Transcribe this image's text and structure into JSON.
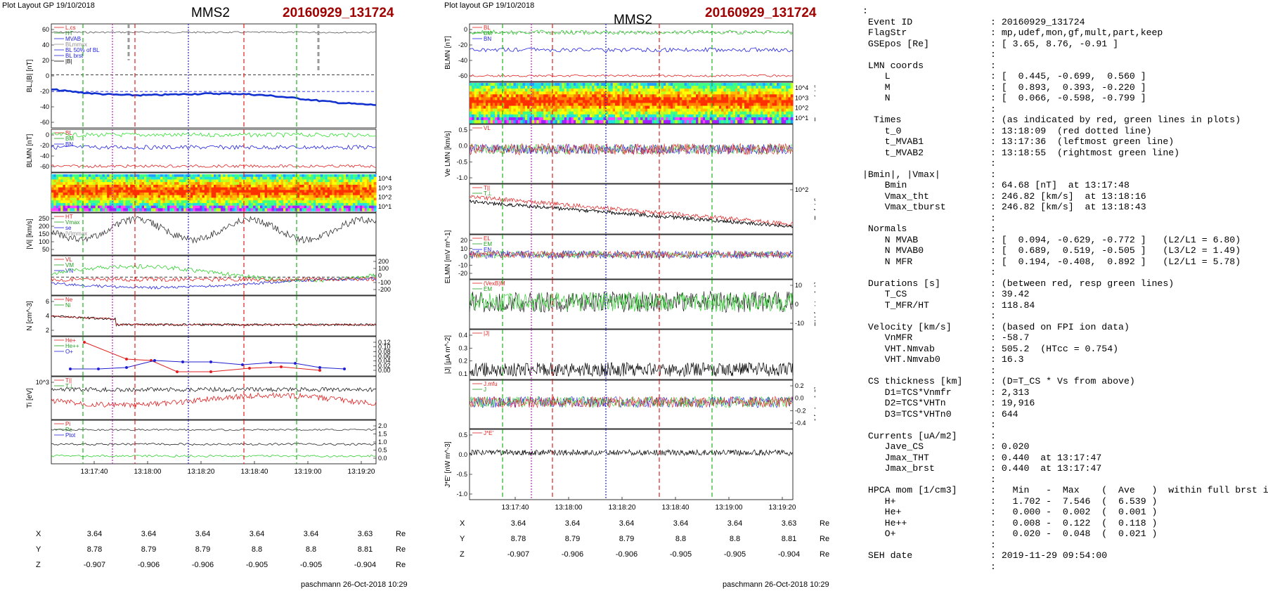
{
  "left": {
    "header": "Plot Layout GP 19/10/2018",
    "title": "MMS2",
    "event": "20160929_131724",
    "footer": "paschmann 26-Oct-2018 10:29",
    "time_ticks": [
      "13:17:40",
      "13:18:00",
      "13:18:20",
      "13:18:40",
      "13:19:00",
      "13:19:20"
    ],
    "coords": [
      {
        "label": "X",
        "values": [
          "3.64",
          "3.64",
          "3.64",
          "3.64",
          "3.64",
          "3.63"
        ],
        "unit": "Re"
      },
      {
        "label": "Y",
        "values": [
          "8.78",
          "8.79",
          "8.79",
          "8.8",
          "8.8",
          "8.81"
        ],
        "unit": "Re"
      },
      {
        "label": "Z",
        "values": [
          "-0.907",
          "-0.906",
          "-0.906",
          "-0.905",
          "-0.905",
          "-0.904"
        ],
        "unit": "Re"
      }
    ],
    "panels": [
      {
        "ylabel": "BL,|B| [nT]",
        "ticks": [
          "60",
          "40",
          "20",
          "0",
          "-20",
          "-40",
          "-60"
        ],
        "legend": [
          "L.cs",
          "HT",
          "MVAB",
          "BLmmsx",
          "BL 50% of BL",
          "BL brst",
          "|B|"
        ]
      },
      {
        "ylabel": "BLMN [nT]",
        "ticks": [
          "0",
          "-20",
          "-40",
          "-60"
        ],
        "legend": [
          "BL",
          "BM",
          "BN"
        ]
      },
      {
        "ylabel": "",
        "right_label": "Energy (eV)",
        "ticks_right": [
          "10^4",
          "10^3",
          "10^2",
          "10^1"
        ]
      },
      {
        "ylabel": "|Vi| [km/s]",
        "ticks": [
          "250",
          "200",
          "150",
          "100",
          "50"
        ],
        "legend": [
          "HT",
          "Vmax",
          "se",
          "|V|mmax"
        ]
      },
      {
        "ylabel": "",
        "right_label": "Vi LMN [km/s]",
        "ticks_right": [
          "200",
          "100",
          "0",
          "-100",
          "-200"
        ],
        "legend": [
          "VL",
          "VM",
          "VN"
        ]
      },
      {
        "ylabel": "N [cm^-3]",
        "ticks": [
          "6",
          "4",
          "2"
        ],
        "legend": [
          "Ne",
          "Ni"
        ]
      },
      {
        "ylabel": "",
        "right_label": "Ni [cm^-3]",
        "ticks_right": [
          "0.12",
          "0.10",
          "0.08",
          "0.06",
          "0.04",
          "0.02",
          "0.00"
        ],
        "legend": [
          "He+",
          "He++",
          "O+"
        ]
      },
      {
        "ylabel": "Ti [eV]",
        "ticks": [
          "10^3"
        ],
        "legend": [
          "T||",
          "T⊥"
        ]
      },
      {
        "ylabel": "",
        "right_label": "P [nPa]",
        "ticks_right": [
          "2.0",
          "1.5",
          "1.0",
          "0.5",
          "0.0"
        ],
        "legend": [
          "Pi",
          "Pe",
          "Ptot"
        ]
      }
    ]
  },
  "middle": {
    "header": "Plot layout GP 19/10/2018",
    "title": "MMS2",
    "event": "20160929_131724",
    "footer": "paschmann 26-Oct-2018 10:29",
    "time_ticks": [
      "13:17:40",
      "13:18:00",
      "13:18:20",
      "13:18:40",
      "13:19:00",
      "13:19:20"
    ],
    "coords": [
      {
        "label": "X",
        "values": [
          "3.64",
          "3.64",
          "3.64",
          "3.64",
          "3.64",
          "3.63"
        ],
        "unit": "Re"
      },
      {
        "label": "Y",
        "values": [
          "8.78",
          "8.79",
          "8.79",
          "8.8",
          "8.8",
          "8.81"
        ],
        "unit": "Re"
      },
      {
        "label": "Z",
        "values": [
          "-0.907",
          "-0.906",
          "-0.906",
          "-0.905",
          "-0.905",
          "-0.904"
        ],
        "unit": "Re"
      }
    ],
    "panels": [
      {
        "ylabel": "BLMN [nT]",
        "ticks": [
          "0",
          "-20",
          "-40",
          "-60"
        ],
        "legend": [
          "BL",
          "BM",
          "BN"
        ]
      },
      {
        "ylabel": "",
        "right_label": "Energy (eV)",
        "ticks_right": [
          "10^4",
          "10^3",
          "10^2",
          "10^1"
        ]
      },
      {
        "ylabel": "Ve LMN [km/s]",
        "ticks": [
          "0.5",
          "0.0",
          "-0.5",
          "-1.0"
        ],
        "legend": [
          "VL"
        ]
      },
      {
        "ylabel": "",
        "right_label": "Te [eV]",
        "ticks_right": [
          "10^2"
        ],
        "legend": [
          "T||",
          "T⊥"
        ]
      },
      {
        "ylabel": "ELMN [mV m^-1]",
        "ticks": [
          "20",
          "10",
          "0",
          "-10",
          "-20"
        ],
        "legend": [
          "EL",
          "EM",
          "EN"
        ]
      },
      {
        "ylabel": "",
        "right_label": "EM [mV m^-1]",
        "ticks_right": [
          "10",
          "0",
          "-10"
        ],
        "legend": [
          "(VexB)M",
          "EM"
        ]
      },
      {
        "ylabel": "|J| [µA m^-2]",
        "ticks": [
          "0.4",
          "0.3",
          "0.2",
          "0.1"
        ],
        "legend": [
          "|J|"
        ]
      },
      {
        "ylabel": "",
        "right_label": "J [µA m^-2]",
        "ticks_right": [
          "0.2",
          "0.0",
          "-0.2",
          "-0.4"
        ],
        "legend": [
          "J.mfu",
          "J"
        ]
      },
      {
        "ylabel": "J*E' [nW m^-3]",
        "ticks": [
          "0.5",
          "0.0",
          "-0.5",
          "-1.0"
        ],
        "legend": [
          "J*E'"
        ]
      }
    ]
  },
  "info_lines": [
    ":",
    " Event ID              : 20160929_131724",
    " FlagStr               : mp,udef,mon,gf,mult,part,keep",
    " GSEpos [Re]           : [ 3.65, 8.76, -0.91 ]",
    "                       :",
    " LMN coords            :",
    "    L                  : [  0.445, -0.699,  0.560 ]",
    "    M                  : [  0.893,  0.393, -0.220 ]",
    "    N                  : [  0.066, -0.598, -0.799 ]",
    "                       :",
    "  Times                : (as indicated by red, green lines in plots)",
    "    t_0                : 13:18:09  (red dotted line)",
    "    t_MVAB1            : 13:17:36  (leftmost green line)",
    "    t_MVAB2            : 13:18:55  (rightmost green line)",
    "                       :",
    "|Bmin|, |Vmax|         :",
    "    Bmin               : 64.68 [nT]  at 13:17:48",
    "    Vmax_tht           : 246.82 [km/s]  at 13:18:16",
    "    Vmax_tburst        : 246.82 [km/s]  at 13:18:43",
    "                       :",
    " Normals               :",
    "    N MVAB             : [  0.094, -0.629, -0.772 ]   (L2/L1 = 6.80)",
    "    N MVAB0            : [  0.689,  0.519, -0.505 ]   (L3/L2 = 1.49)",
    "    N MFR              : [  0.194, -0.408,  0.892 ]   (L2/L1 = 5.78)",
    "                       :",
    " Durations [s]         : (between red, resp green lines)",
    "    T_CS               : 39.42",
    "    T_MFR/HT           : 118.84",
    "                       :",
    " Velocity [km/s]       : (based on FPI ion data)",
    "    VnMFR              : -58.7",
    "    VHT.Nmvab          : 505.2  (HTcc = 0.754)",
    "    VHT.Nmvab0         : 16.3",
    "                       :",
    " CS thickness [km]     : (D=T_CS * Vs from above)",
    "    D1=TCS*Vnmfr       : 2,313",
    "    D2=TCS*VHTn        : 19,916",
    "    D3=TCS*VHTn0       : 644",
    "                       :",
    " Currents [uA/m2]      :",
    "    Jave_CS            : 0.020",
    "    Jmax_THT           : 0.440  at 13:17:47",
    "    Jmax_brst          : 0.440  at 13:17:47",
    "                       :",
    " HPCA mom [1/cm3]      :   Min   -  Max    (  Ave   )  within full brst int",
    "    H+                 :   1.702 -  7.546  (  6.539 )",
    "    He+                :   0.000 -  0.002  (  0.001 )",
    "    He++               :   0.008 -  0.122  (  0.118 )",
    "    O+                 :   0.020 -  0.048  (  0.021 )",
    "                       :",
    " SEH date              : 2019-11-29 09:54:00",
    "                       :"
  ],
  "chart_data": [
    {
      "type": "line",
      "title": "MMS2",
      "subtitle": "20160929_131724",
      "xlabel": "",
      "x_ticks": [
        "13:17:40",
        "13:18:00",
        "13:18:20",
        "13:18:40",
        "13:19:00",
        "13:19:20"
      ],
      "panels": [
        {
          "ylabel": "BL,|B| [nT]",
          "ylim": [
            -70,
            75
          ],
          "series": [
            {
              "name": "|B|",
              "values": [
                68,
                66,
                67,
                65,
                66,
                67,
                66,
                67,
                68,
                67,
                68,
                68,
                67,
                68,
                67,
                68
              ]
            },
            {
              "name": "BL brst",
              "values": [
                -20,
                -19,
                -20,
                -17,
                -22,
                -24,
                -28,
                -28,
                -30,
                -34,
                -38,
                -35,
                -34,
                -37,
                -36,
                -35
              ]
            }
          ]
        },
        {
          "ylabel": "BLMN [nT]",
          "ylim": [
            -65,
            5
          ],
          "series": [
            {
              "name": "BL",
              "values": [
                -5,
                -6,
                -3,
                -2,
                -4,
                -5,
                -6,
                -5,
                -2,
                -4,
                -3,
                -5,
                -6,
                -7,
                -8,
                -10
              ]
            },
            {
              "name": "BM",
              "values": [
                -18,
                -20,
                -24,
                -30,
                -22,
                -25,
                -26,
                -24,
                -26,
                -28,
                -30,
                -28,
                -26,
                -27,
                -28,
                -30
              ]
            },
            {
              "name": "BN",
              "values": [
                -60,
                -62,
                -58,
                -61,
                -63,
                -62,
                -60,
                -61,
                -62,
                -63,
                -62,
                -61,
                -62,
                -62,
                -62,
                -63
              ]
            }
          ]
        },
        {
          "ylabel": "|Vi| [km/s]",
          "ylim": [
            50,
            260
          ],
          "series": [
            {
              "name": "|V|",
              "values": [
                190,
                180,
                170,
                200,
                150,
                200,
                160,
                240,
                120,
                90,
                200,
                220,
                180,
                230,
                200,
                150,
                120
              ]
            }
          ]
        },
        {
          "ylabel": "N [cm^-3]",
          "ylim": [
            1,
            7
          ],
          "series": [
            {
              "name": "Ne",
              "values": [
                4.0,
                4.5,
                3.8,
                6.0,
                2.5,
                2.2,
                2.3,
                2.1,
                2.2,
                2.0,
                2.2,
                2.0,
                2.1,
                2.0,
                1.9,
                1.8
              ]
            }
          ]
        },
        {
          "ylabel": "Ni [cm^-3]",
          "ylim": [
            0,
            0.12
          ],
          "series": [
            {
              "name": "He++",
              "values": [
                null,
                0.11,
                0.09,
                0.04,
                0.04,
                0.025,
                0.025,
                0.02,
                0.03,
                0.025,
                0.02
              ]
            },
            {
              "name": "O+",
              "values": [
                0.022,
                0.023,
                0.025,
                0.033,
                0.04,
                0.03,
                0.032,
                0.028,
                0.035,
                0.03,
                0.025,
                0.02
              ]
            }
          ]
        }
      ]
    },
    {
      "type": "line",
      "title": "MMS2",
      "subtitle": "20160929_131724",
      "xlabel": "",
      "x_ticks": [
        "13:17:40",
        "13:18:00",
        "13:18:20",
        "13:18:40",
        "13:19:00",
        "13:19:20"
      ],
      "panels": [
        {
          "ylabel": "BLMN [nT]",
          "ylim": [
            -65,
            5
          ]
        },
        {
          "ylabel": "Ve LMN [km/s]",
          "ylim": [
            -1.1,
            0.7
          ]
        },
        {
          "ylabel": "Te [eV]",
          "ylim": [
            10,
            200
          ]
        },
        {
          "ylabel": "ELMN [mV m^-1]",
          "ylim": [
            -25,
            35
          ]
        },
        {
          "ylabel": "|J| [µA m^-2]",
          "ylim": [
            0,
            0.45
          ]
        },
        {
          "ylabel": "J*E' [nW m^-3]",
          "ylim": [
            -1.2,
            0.7
          ]
        }
      ]
    }
  ],
  "colors": {
    "event": "#a00000",
    "red_line": "#e02020",
    "green_line": "#20b020",
    "blue_line": "#2020e0",
    "magenta_line": "#c020c0"
  }
}
